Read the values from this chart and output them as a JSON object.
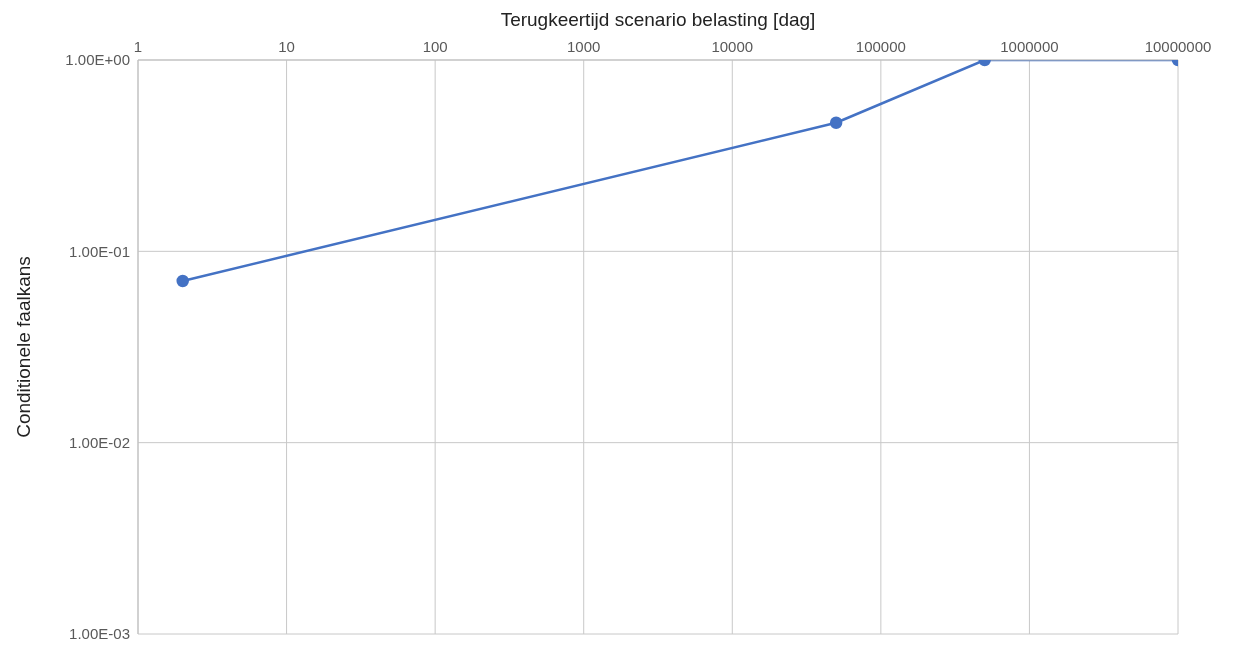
{
  "chart_data": {
    "type": "line",
    "xlabel": "Terugkeertijd scenario belasting [dag]",
    "ylabel": "Conditionele faalkans",
    "x": [
      2,
      50000,
      500000,
      10000000
    ],
    "series": [
      {
        "color": "#4472c4",
        "values": [
          0.07,
          0.47,
          1,
          1
        ]
      }
    ],
    "log": "xy",
    "grid": true,
    "legend": false,
    "marker": "circle",
    "line_style": "solid",
    "xlim": [
      1,
      10000000
    ],
    "xticks": [
      1,
      10,
      100,
      1000,
      10000,
      100000,
      1000000,
      10000000
    ],
    "ylim": [
      0.001,
      1
    ],
    "yticks": [
      {
        "value": 0.001,
        "label": "1.00E-03"
      },
      {
        "value": 0.01,
        "label": "1.00E-02"
      },
      {
        "value": 0.1,
        "label": "1.00E-01"
      },
      {
        "value": 1,
        "label": "1.00E+00"
      }
    ]
  }
}
